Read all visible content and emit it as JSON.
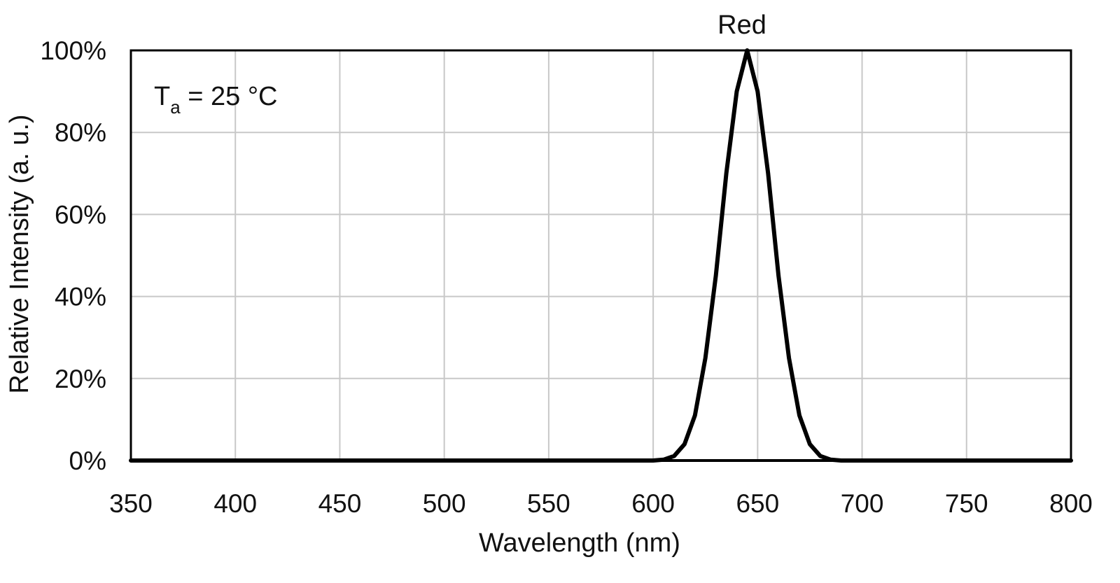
{
  "chart_data": {
    "type": "line",
    "series": [
      {
        "name": "Red",
        "color": "#000000",
        "x": [
          600,
          605,
          610,
          615,
          620,
          625,
          630,
          635,
          640,
          645,
          650,
          655,
          660,
          665,
          670,
          675,
          680,
          685,
          690
        ],
        "y": [
          0.0,
          0.2,
          1.1,
          4.0,
          11.0,
          25.0,
          45.0,
          70.0,
          90.0,
          100.0,
          90.0,
          70.0,
          45.0,
          25.0,
          11.0,
          4.0,
          1.1,
          0.2,
          0.0
        ]
      }
    ],
    "xlabel": "Wavelength (nm)",
    "ylabel": "Relative Intensity (a. u.)",
    "xlim": [
      350,
      800
    ],
    "ylim": [
      0,
      100
    ],
    "xticks": [
      350,
      400,
      450,
      500,
      550,
      600,
      650,
      700,
      750,
      800
    ],
    "xtick_labels": [
      "350",
      "400",
      "450",
      "500",
      "550",
      "600",
      "650",
      "700",
      "750",
      "800"
    ],
    "yticks": [
      0,
      20,
      40,
      60,
      80,
      100
    ],
    "ytick_labels": [
      "0%",
      "20%",
      "40%",
      "60%",
      "80%",
      "100%"
    ],
    "grid": true,
    "annotations": {
      "series_label": "Red",
      "condition_prefix": "T",
      "condition_subscript": "a",
      "condition_suffix": " = 25 °C"
    }
  }
}
